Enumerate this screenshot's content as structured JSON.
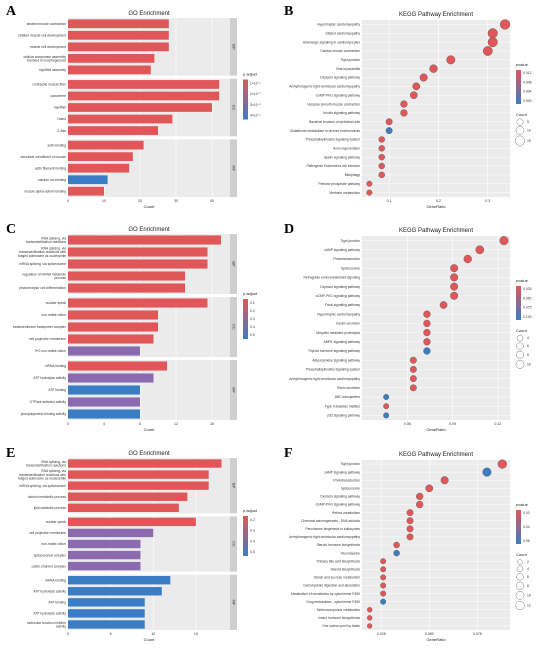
{
  "panel_labels": [
    "A",
    "B",
    "C",
    "D",
    "E",
    "F"
  ],
  "chart_data": [
    {
      "panel": "A",
      "type": "bar",
      "orientation": "horizontal",
      "title": "GO Enrichment",
      "xlabel": "Count",
      "xlim": [
        0,
        45
      ],
      "xticks": [
        "0",
        "10",
        "20",
        "30",
        "40"
      ],
      "legend_title": "p.adjust",
      "legend_ticks": [
        "1×10⁻⁵",
        "2×10⁻⁵",
        "3×10⁻⁵",
        "4×10⁻⁵"
      ],
      "color_low": "#e15759",
      "color_high": "#3b7dc4",
      "groups": [
        {
          "name": "BP",
          "bars": [
            {
              "label": "striated muscle contraction",
              "count": 28,
              "color": "#e15759"
            },
            {
              "label": "striated muscle cell development",
              "count": 28,
              "color": "#e15759"
            },
            {
              "label": "muscle cell development",
              "count": 28,
              "color": "#e15759"
            },
            {
              "label": "cellular component assembly involved in morphogenesis",
              "count": 24,
              "color": "#e15759"
            },
            {
              "label": "myofibril assembly",
              "count": 23,
              "color": "#e15759"
            }
          ]
        },
        {
          "name": "CC",
          "bars": [
            {
              "label": "contractile muscle fiber",
              "count": 42,
              "color": "#e15759"
            },
            {
              "label": "sarcomere",
              "count": 42,
              "color": "#e15759"
            },
            {
              "label": "myofibril",
              "count": 40,
              "color": "#e15759"
            },
            {
              "label": "I band",
              "count": 29,
              "color": "#e15759"
            },
            {
              "label": "Z disc",
              "count": 25,
              "color": "#e15759"
            }
          ]
        },
        {
          "name": "MF",
          "bars": [
            {
              "label": "actin binding",
              "count": 21,
              "color": "#e15759"
            },
            {
              "label": "structural constituent of muscle",
              "count": 18,
              "color": "#e15759"
            },
            {
              "label": "actin filament binding",
              "count": 17,
              "color": "#e15759"
            },
            {
              "label": "calcium ion binding",
              "count": 11,
              "color": "#3b7dc4"
            },
            {
              "label": "muscle alpha-actinin binding",
              "count": 10,
              "color": "#e15759"
            }
          ]
        }
      ]
    },
    {
      "panel": "B",
      "type": "scatter",
      "title": "KEGG Pathway Enrichment",
      "xlabel": "GeneRatio",
      "xlim": [
        0.045,
        0.345
      ],
      "xticks": [
        {
          "v": 0.1,
          "t": "0.1"
        },
        {
          "v": 0.2,
          "t": "0.2"
        },
        {
          "v": 0.3,
          "t": "0.3"
        }
      ],
      "legend_title": "pvalue",
      "legend_ticks": [
        "0.012",
        "0.008",
        "0.004",
        "0.000"
      ],
      "size_title": "Count",
      "size_ticks": [
        "5",
        "10",
        "15"
      ],
      "points": [
        {
          "label": "Hypertrophic cardiomyopathy",
          "x": 0.335,
          "count": 16,
          "color": "#e15759"
        },
        {
          "label": "Dilated cardiomyopathy",
          "x": 0.31,
          "count": 15,
          "color": "#e15759"
        },
        {
          "label": "Adrenergic signaling in cardiomyocytes",
          "x": 0.31,
          "count": 15,
          "color": "#e15759"
        },
        {
          "label": "Cardiac muscle contraction",
          "x": 0.3,
          "count": 14,
          "color": "#e15759"
        },
        {
          "label": "Tight junction",
          "x": 0.225,
          "count": 11,
          "color": "#e15759"
        },
        {
          "label": "Viral myocarditis",
          "x": 0.19,
          "count": 9,
          "color": "#e15759"
        },
        {
          "label": "Oxytocin signaling pathway",
          "x": 0.17,
          "count": 8,
          "color": "#e15759"
        },
        {
          "label": "Arrhythmogenic right ventricular cardiomyopathy",
          "x": 0.155,
          "count": 7,
          "color": "#e15759"
        },
        {
          "label": "cGMP-PKG signaling pathway",
          "x": 0.15,
          "count": 7,
          "color": "#e15759"
        },
        {
          "label": "Vascular smooth muscle contraction",
          "x": 0.13,
          "count": 6,
          "color": "#e15759"
        },
        {
          "label": "Insulin signaling pathway",
          "x": 0.13,
          "count": 6,
          "color": "#e15759"
        },
        {
          "label": "Bacterial invasion of epithelial cells",
          "x": 0.1,
          "count": 5,
          "color": "#e15759"
        },
        {
          "label": "Glutathione metabolism in diverse environments",
          "x": 0.1,
          "count": 5,
          "color": "#3b7dc4"
        },
        {
          "label": "Phosphatidylinositol signaling system",
          "x": 0.085,
          "count": 4,
          "color": "#e15759"
        },
        {
          "label": "Axon regeneration",
          "x": 0.085,
          "count": 4,
          "color": "#e15759"
        },
        {
          "label": "Apelin signaling pathway",
          "x": 0.085,
          "count": 4,
          "color": "#e15759"
        },
        {
          "label": "Pathogenic Escherichia coli infection",
          "x": 0.085,
          "count": 4,
          "color": "#e15759"
        },
        {
          "label": "Mitophagy",
          "x": 0.085,
          "count": 4,
          "color": "#e15759"
        },
        {
          "label": "Pentose phosphate pathway",
          "x": 0.06,
          "count": 3,
          "color": "#e15759"
        },
        {
          "label": "Methane metabolism",
          "x": 0.06,
          "count": 3,
          "color": "#e15759"
        }
      ]
    },
    {
      "panel": "C",
      "type": "bar",
      "orientation": "horizontal",
      "title": "GO Enrichment",
      "xlabel": "Count",
      "xlim": [
        0,
        18
      ],
      "xticks": [
        "0",
        "4",
        "8",
        "12",
        "16"
      ],
      "legend_title": "p.adjust",
      "legend_ticks": [
        "0.1",
        "0.2",
        "0.3",
        "0.4",
        "0.5"
      ],
      "color_low": "#e15759",
      "color_high": "#3b7dc4",
      "groups": [
        {
          "name": "BP",
          "bars": [
            {
              "label": "RNA splicing, via transesterification reactions",
              "count": 17,
              "color": "#e15759"
            },
            {
              "label": "RNA splicing, via transesterification reactions with bulged adenosine as nucleophile",
              "count": 15.5,
              "color": "#e15759"
            },
            {
              "label": "mRNA splicing, via spliceosome",
              "count": 15.5,
              "color": "#e15759"
            },
            {
              "label": "regulation of mRNA metabolic process",
              "count": 13,
              "color": "#e15759"
            },
            {
              "label": "photoreceptor cell differentiation",
              "count": 13,
              "color": "#e15759"
            }
          ]
        },
        {
          "name": "CC",
          "bars": [
            {
              "label": "nuclear speck",
              "count": 15.5,
              "color": "#e15759"
            },
            {
              "label": "non-motile cilium",
              "count": 10,
              "color": "#e15759"
            },
            {
              "label": "transmembrane transporter complex",
              "count": 10,
              "color": "#e15759"
            },
            {
              "label": "cell projection membrane",
              "count": 9.5,
              "color": "#e15759"
            },
            {
              "label": "9+0 non-motile cilium",
              "count": 8,
              "color": "#8a6bb0"
            }
          ]
        },
        {
          "name": "MF",
          "bars": [
            {
              "label": "mRNA binding",
              "count": 11,
              "color": "#e15759"
            },
            {
              "label": "ATP hydrolysis activity",
              "count": 9.5,
              "color": "#8a6bb0"
            },
            {
              "label": "ATP binding",
              "count": 8,
              "color": "#3b7dc4"
            },
            {
              "label": "GTPase activator activity",
              "count": 8,
              "color": "#8a6bb0"
            },
            {
              "label": "phosphoprotein binding activity",
              "count": 8,
              "color": "#3b7dc4"
            }
          ]
        }
      ]
    },
    {
      "panel": "D",
      "type": "scatter",
      "title": "KEGG Pathway Enrichment",
      "xlabel": "GeneRatio",
      "xlim": [
        0.03,
        0.128
      ],
      "xticks": [
        {
          "v": 0.06,
          "t": "0.06"
        },
        {
          "v": 0.09,
          "t": "0.09"
        },
        {
          "v": 0.12,
          "t": "0.12"
        }
      ],
      "legend_title": "pvalue",
      "legend_ticks": [
        "0.025",
        "0.050",
        "0.075",
        "0.100"
      ],
      "size_title": "Count",
      "size_ticks": [
        "4",
        "6",
        "8",
        "10"
      ],
      "points": [
        {
          "label": "Tight junction",
          "x": 0.124,
          "count": 11,
          "color": "#e15759"
        },
        {
          "label": "cAMP signaling pathway",
          "x": 0.108,
          "count": 10,
          "color": "#e15759"
        },
        {
          "label": "Phototransduction",
          "x": 0.1,
          "count": 9,
          "color": "#e15759"
        },
        {
          "label": "Spliceosome",
          "x": 0.091,
          "count": 8,
          "color": "#e15759"
        },
        {
          "label": "Retrograde endocannabinoid signaling",
          "x": 0.091,
          "count": 8,
          "color": "#e15759"
        },
        {
          "label": "Oxytocin signaling pathway",
          "x": 0.091,
          "count": 8,
          "color": "#e15759"
        },
        {
          "label": "cGMP-PKG signaling pathway",
          "x": 0.091,
          "count": 8,
          "color": "#e15759"
        },
        {
          "label": "Focal signaling pathway",
          "x": 0.084,
          "count": 7,
          "color": "#e15759"
        },
        {
          "label": "Hypertrophic cardiomyopathy",
          "x": 0.073,
          "count": 6,
          "color": "#e15759"
        },
        {
          "label": "Insulin secretion",
          "x": 0.073,
          "count": 6,
          "color": "#e15759"
        },
        {
          "label": "Ubiquitin mediated proteolysis",
          "x": 0.073,
          "count": 6,
          "color": "#e15759"
        },
        {
          "label": "AMPK signaling pathway",
          "x": 0.073,
          "count": 6,
          "color": "#e15759"
        },
        {
          "label": "Thyroid hormone signaling pathway",
          "x": 0.073,
          "count": 6,
          "color": "#3b7dc4"
        },
        {
          "label": "Adipocytokine signaling pathway",
          "x": 0.064,
          "count": 5,
          "color": "#e15759"
        },
        {
          "label": "Phosphatidylinositol signaling system",
          "x": 0.064,
          "count": 5,
          "color": "#e15759"
        },
        {
          "label": "Arrhythmogenic right ventricular cardiomyopathy",
          "x": 0.064,
          "count": 5,
          "color": "#e15759"
        },
        {
          "label": "Renin secretion",
          "x": 0.064,
          "count": 5,
          "color": "#e15759"
        },
        {
          "label": "ABC transporters",
          "x": 0.046,
          "count": 3,
          "color": "#3b7dc4"
        },
        {
          "label": "Type II diabetes mellitus",
          "x": 0.046,
          "count": 3,
          "color": "#e15759"
        },
        {
          "label": "p53 signaling pathway",
          "x": 0.046,
          "count": 3,
          "color": "#3b7dc4"
        }
      ]
    },
    {
      "panel": "E",
      "type": "bar",
      "orientation": "horizontal",
      "title": "GO Enrichment",
      "xlabel": "Count",
      "xlim": [
        0,
        19
      ],
      "xticks": [
        "0",
        "5",
        "10",
        "15"
      ],
      "legend_title": "p.adjust",
      "legend_ticks": [
        "0.2",
        "0.3",
        "0.4",
        "0.5"
      ],
      "color_low": "#e15759",
      "color_high": "#3b7dc4",
      "groups": [
        {
          "name": "BP",
          "bars": [
            {
              "label": "RNA splicing, via transesterification reactions",
              "count": 18,
              "color": "#e15759"
            },
            {
              "label": "RNA splicing, via transesterification reactions with bulged adenosine as nucleophile",
              "count": 16.5,
              "color": "#e15759"
            },
            {
              "label": "mRNA splicing, via spliceosome",
              "count": 16.5,
              "color": "#e15759"
            },
            {
              "label": "alcohol metabolic process",
              "count": 14,
              "color": "#e15759"
            },
            {
              "label": "lipid catabolic process",
              "count": 13,
              "color": "#e15759"
            }
          ]
        },
        {
          "name": "CC",
          "bars": [
            {
              "label": "nuclear speck",
              "count": 15,
              "color": "#e15759"
            },
            {
              "label": "cell projection membrane",
              "count": 10,
              "color": "#8a6bb0"
            },
            {
              "label": "non-motile cilium",
              "count": 8.5,
              "color": "#8a6bb0"
            },
            {
              "label": "spliceosomal complex",
              "count": 8.5,
              "color": "#8a6bb0"
            },
            {
              "label": "cation channel complex",
              "count": 8.5,
              "color": "#8a6bb0"
            }
          ]
        },
        {
          "name": "MF",
          "bars": [
            {
              "label": "mRNA binding",
              "count": 12,
              "color": "#3b7dc4"
            },
            {
              "label": "ATP hydrolysis activity",
              "count": 11,
              "color": "#3b7dc4"
            },
            {
              "label": "ATP binding",
              "count": 9,
              "color": "#3b7dc4"
            },
            {
              "label": "ATP hydrolysis activity",
              "count": 9,
              "color": "#3b7dc4"
            },
            {
              "label": "molecular function inhibitor activity",
              "count": 9,
              "color": "#3b7dc4"
            }
          ]
        }
      ]
    },
    {
      "panel": "F",
      "type": "scatter",
      "title": "KEGG Pathway Enrichment",
      "xlabel": "GeneRatio",
      "xlim": [
        0.015,
        0.092
      ],
      "xticks": [
        {
          "v": 0.025,
          "t": "0.025"
        },
        {
          "v": 0.05,
          "t": "0.050"
        },
        {
          "v": 0.075,
          "t": "0.075"
        }
      ],
      "legend_title": "pvalue",
      "legend_ticks": [
        "0.02",
        "0.04",
        "0.06"
      ],
      "size_title": "Count",
      "size_ticks": [
        "2",
        "4",
        "6",
        "8",
        "10",
        "12"
      ],
      "points": [
        {
          "label": "Tight junction",
          "x": 0.088,
          "count": 12,
          "color": "#e15759"
        },
        {
          "label": "cAMP signaling pathway",
          "x": 0.08,
          "count": 11,
          "color": "#3b7dc4"
        },
        {
          "label": "Phototransduction",
          "x": 0.058,
          "count": 8,
          "color": "#e15759"
        },
        {
          "label": "Spliceosome",
          "x": 0.05,
          "count": 7,
          "color": "#e15759"
        },
        {
          "label": "Oxytocin signaling pathway",
          "x": 0.045,
          "count": 6,
          "color": "#e15759"
        },
        {
          "label": "cGMP-PKG signaling pathway",
          "x": 0.045,
          "count": 6,
          "color": "#e15759"
        },
        {
          "label": "Retinol metabolism",
          "x": 0.04,
          "count": 5,
          "color": "#e15759"
        },
        {
          "label": "Chemical carcinogenesis - DNA adducts",
          "x": 0.04,
          "count": 5,
          "color": "#e15759"
        },
        {
          "label": "Peroxisome biogenesis in eukaryotes",
          "x": 0.04,
          "count": 5,
          "color": "#e15759"
        },
        {
          "label": "Arrhythmogenic right ventricular cardiomyopathy",
          "x": 0.04,
          "count": 5,
          "color": "#e15759"
        },
        {
          "label": "Steroid hormone biosynthesis",
          "x": 0.033,
          "count": 4,
          "color": "#e15759"
        },
        {
          "label": "Fluorotaurine",
          "x": 0.033,
          "count": 4,
          "color": "#3b7dc4"
        },
        {
          "label": "Primary bile acid biosynthesis",
          "x": 0.026,
          "count": 3,
          "color": "#e15759"
        },
        {
          "label": "Steroid biosynthesis",
          "x": 0.026,
          "count": 3,
          "color": "#e15759"
        },
        {
          "label": "Starch and sucrose metabolism",
          "x": 0.026,
          "count": 3,
          "color": "#e15759"
        },
        {
          "label": "Carbohydrate digestion and absorption",
          "x": 0.026,
          "count": 3,
          "color": "#e15759"
        },
        {
          "label": "Metabolism of xenobiotics by cytochrome P450",
          "x": 0.026,
          "count": 3,
          "color": "#e15759"
        },
        {
          "label": "Drug metabolism - cytochrome P450",
          "x": 0.026,
          "count": 3,
          "color": "#3b7dc4"
        },
        {
          "label": "Selenocompound metabolism",
          "x": 0.019,
          "count": 2,
          "color": "#e15759"
        },
        {
          "label": "Insect hormone biosynthesis",
          "x": 0.019,
          "count": 2,
          "color": "#e15759"
        },
        {
          "label": "One carbon pool by folate",
          "x": 0.019,
          "count": 2,
          "color": "#e15759"
        }
      ]
    }
  ]
}
